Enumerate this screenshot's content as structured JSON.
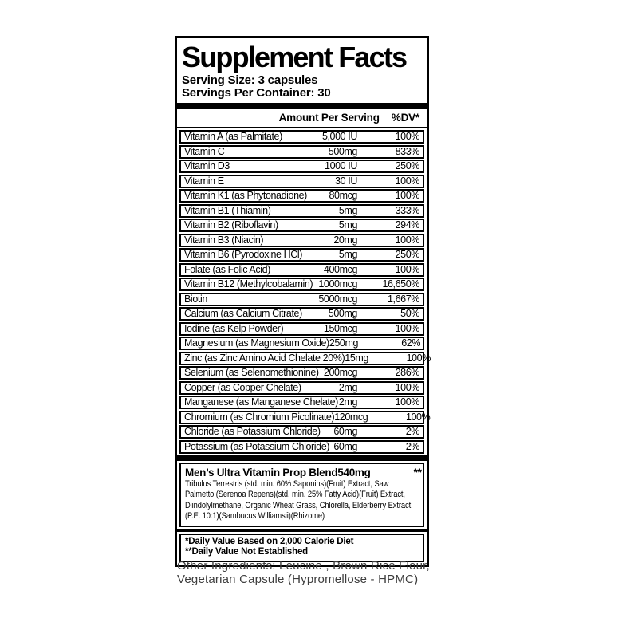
{
  "label": {
    "title": "Supplement Facts",
    "serving_size": "Serving Size: 3 capsules",
    "servings_per_container": "Servings Per Container: 30",
    "header": {
      "amount": "Amount Per Serving",
      "dv": "%DV*"
    },
    "rows": [
      {
        "name": "Vitamin A (as Palmitate)",
        "amount": "5,000 IU",
        "dv": "100%"
      },
      {
        "name": "Vitamin C",
        "amount": "500mg",
        "dv": "833%"
      },
      {
        "name": "Vitamin D3",
        "amount": "1000 IU",
        "dv": "250%"
      },
      {
        "name": "Vitamin E",
        "amount": "30 IU",
        "dv": "100%"
      },
      {
        "name": "Vitamin K1 (as Phytonadione)",
        "amount": "80mcg",
        "dv": "100%"
      },
      {
        "name": "Vitamin B1 (Thiamin)",
        "amount": "5mg",
        "dv": "333%"
      },
      {
        "name": "Vitamin B2 (Riboflavin)",
        "amount": "5mg",
        "dv": "294%"
      },
      {
        "name": "Vitamin B3 (Niacin)",
        "amount": "20mg",
        "dv": "100%"
      },
      {
        "name": "Vitamin B6 (Pyrodoxine HCl)",
        "amount": "5mg",
        "dv": "250%"
      },
      {
        "name": "Folate (as Folic Acid)",
        "amount": "400mcg",
        "dv": "100%"
      },
      {
        "name": "Vitamin B12 (Methylcobalamin)",
        "amount": "1000mcg",
        "dv": "16,650%"
      },
      {
        "name": "Biotin",
        "amount": "5000mcg",
        "dv": "1,667%"
      },
      {
        "name": "Calcium (as Calcium Citrate)",
        "amount": "500mg",
        "dv": "50%"
      },
      {
        "name": "Iodine (as Kelp Powder)",
        "amount": "150mcg",
        "dv": "100%"
      },
      {
        "name": "Magnesium (as Magnesium Oxide)",
        "amount": "250mg",
        "dv": "62%"
      },
      {
        "name": "Zinc (as Zinc Amino Acid Chelate 20%)",
        "amount": "15mg",
        "dv": "100%"
      },
      {
        "name": "Selenium (as Selenomethionine)",
        "amount": "200mcg",
        "dv": "286%"
      },
      {
        "name": "Copper (as Copper Chelate)",
        "amount": "2mg",
        "dv": "100%"
      },
      {
        "name": "Manganese (as Manganese Chelate)",
        "amount": "2mg",
        "dv": "100%"
      },
      {
        "name": "Chromium (as Chromium Picolinate)",
        "amount": "120mcg",
        "dv": "100%"
      },
      {
        "name": "Chloride (as Potassium Chloride)",
        "amount": "60mg",
        "dv": "2%"
      },
      {
        "name": "Potassium (as Potassium Chloride)",
        "amount": "60mg",
        "dv": "2%"
      }
    ],
    "blend": {
      "name": "Men’s Ultra Vitamin Prop Blend",
      "amount": "540mg",
      "dv": "**",
      "description": "Tribulus Terrestris (std. min. 60% Saponins)(Fruit) Extract, Saw Palmetto (Serenoa Repens)(std. min. 25% Fatty Acid)(Fruit) Extract, Diindolylmethane, Organic Wheat Grass, Chlorella, Elderberry Extract (P.E. 10:1)(Sambucus Williamsii)(Rhizome)"
    },
    "footnotes": [
      "*Daily Value Based on 2,000 Calorie Diet",
      "**Daily Value Not Established"
    ]
  },
  "other_ingredients": {
    "lines": [
      "Other Ingredients: Leucine , Brown Rice Flour,",
      "Vegetarian Capsule (Hypromellose - HPMC)"
    ]
  },
  "colors": {
    "ink": "#000000",
    "paper": "#ffffff",
    "other_text": "#3d3d3d"
  }
}
